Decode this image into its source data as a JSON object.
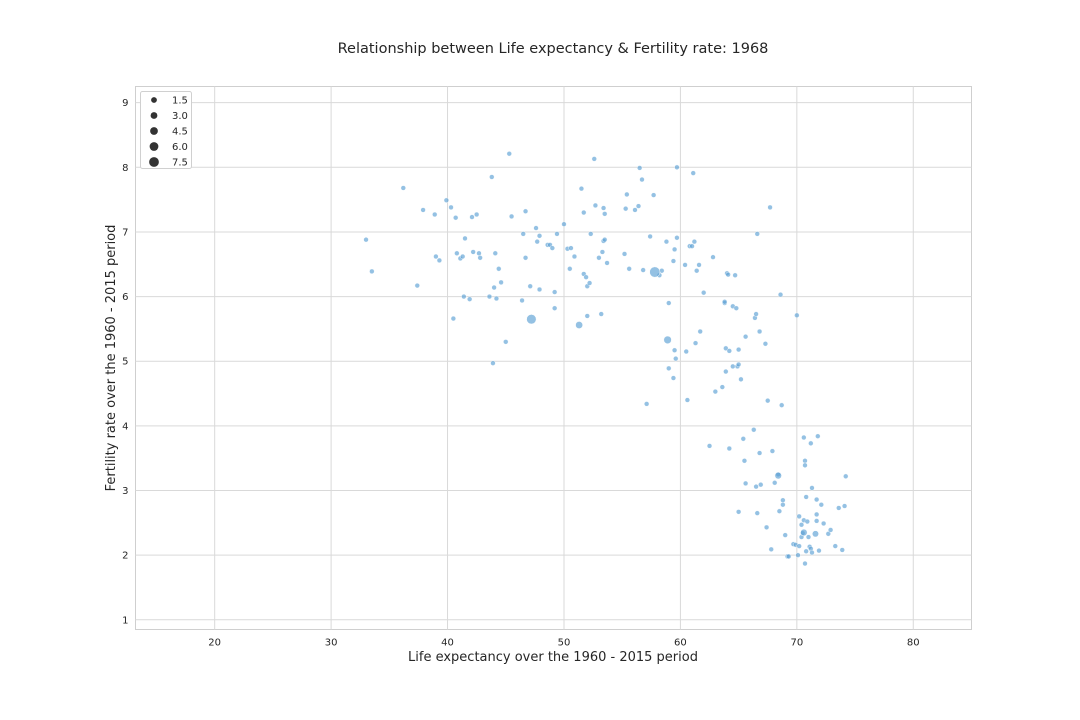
{
  "chart_data": {
    "type": "scatter",
    "title": "Relationship between Life expectancy & Fertility rate: 1968",
    "xlabel": "Life expectancy over the 1960 - 2015 period",
    "ylabel": "Fertility rate over the  1960 - 2015 period",
    "xlim": [
      13.2,
      85
    ],
    "ylim": [
      0.85,
      9.25
    ],
    "xticks": [
      20,
      30,
      40,
      50,
      60,
      70,
      80
    ],
    "yticks": [
      1,
      2,
      3,
      4,
      5,
      6,
      7,
      8,
      9
    ],
    "grid": true,
    "legend_placement": "top-left",
    "legend": [
      {
        "label": "1.5",
        "size": 1.5
      },
      {
        "label": "3.0",
        "size": 3.0
      },
      {
        "label": "4.5",
        "size": 4.5
      },
      {
        "label": "6.0",
        "size": 6.0
      },
      {
        "label": "7.5",
        "size": 7.5
      }
    ],
    "point_color": "#5a9fd4",
    "big_points": [
      [
        57.8,
        6.38,
        3.5
      ],
      [
        47.2,
        5.65,
        3.0
      ],
      [
        58.9,
        5.33,
        1.8
      ],
      [
        51.3,
        5.56,
        1.5
      ],
      [
        68.4,
        3.23,
        1.2
      ],
      [
        70.6,
        2.35,
        1.2
      ],
      [
        71.6,
        2.33,
        1.0
      ]
    ],
    "points": [
      [
        33.0,
        6.88
      ],
      [
        33.5,
        6.39
      ],
      [
        36.2,
        7.68
      ],
      [
        37.4,
        6.17
      ],
      [
        37.9,
        7.34
      ],
      [
        38.9,
        7.27
      ],
      [
        39.0,
        6.62
      ],
      [
        39.3,
        6.56
      ],
      [
        39.9,
        7.49
      ],
      [
        40.3,
        7.38
      ],
      [
        40.7,
        7.22
      ],
      [
        40.8,
        6.67
      ],
      [
        41.1,
        6.59
      ],
      [
        41.3,
        6.62
      ],
      [
        41.4,
        6.0
      ],
      [
        41.5,
        6.9
      ],
      [
        41.9,
        5.96
      ],
      [
        42.1,
        7.23
      ],
      [
        42.2,
        6.69
      ],
      [
        42.5,
        7.27
      ],
      [
        42.7,
        6.67
      ],
      [
        42.8,
        6.6
      ],
      [
        40.5,
        5.66
      ],
      [
        43.6,
        6.0
      ],
      [
        43.8,
        7.85
      ],
      [
        43.9,
        4.97
      ],
      [
        44.0,
        6.14
      ],
      [
        44.1,
        6.67
      ],
      [
        44.2,
        5.97
      ],
      [
        44.4,
        6.43
      ],
      [
        44.6,
        6.22
      ],
      [
        45.0,
        5.3
      ],
      [
        45.3,
        8.21
      ],
      [
        45.5,
        7.24
      ],
      [
        46.4,
        5.94
      ],
      [
        46.5,
        6.97
      ],
      [
        46.7,
        7.32
      ],
      [
        46.7,
        6.6
      ],
      [
        47.1,
        6.16
      ],
      [
        47.6,
        7.06
      ],
      [
        47.7,
        6.85
      ],
      [
        47.9,
        6.11
      ],
      [
        47.9,
        6.94
      ],
      [
        48.6,
        6.8
      ],
      [
        48.8,
        6.8
      ],
      [
        49.0,
        6.75
      ],
      [
        49.2,
        6.07
      ],
      [
        49.2,
        5.82
      ],
      [
        49.4,
        6.97
      ],
      [
        50.0,
        7.12
      ],
      [
        50.3,
        6.74
      ],
      [
        50.5,
        6.43
      ],
      [
        50.6,
        6.75
      ],
      [
        50.9,
        6.62
      ],
      [
        51.5,
        7.67
      ],
      [
        51.7,
        7.3
      ],
      [
        51.7,
        6.35
      ],
      [
        51.9,
        6.3
      ],
      [
        52.0,
        6.16
      ],
      [
        52.0,
        5.7
      ],
      [
        52.2,
        6.21
      ],
      [
        52.3,
        6.97
      ],
      [
        52.6,
        8.13
      ],
      [
        52.7,
        7.41
      ],
      [
        53.0,
        6.6
      ],
      [
        53.2,
        5.73
      ],
      [
        53.3,
        6.69
      ],
      [
        53.4,
        7.37
      ],
      [
        53.4,
        6.86
      ],
      [
        53.5,
        6.88
      ],
      [
        53.5,
        7.28
      ],
      [
        53.7,
        6.52
      ],
      [
        55.2,
        6.66
      ],
      [
        55.3,
        7.36
      ],
      [
        55.4,
        7.58
      ],
      [
        55.6,
        6.43
      ],
      [
        56.1,
        7.34
      ],
      [
        56.4,
        7.4
      ],
      [
        56.5,
        7.99
      ],
      [
        56.7,
        7.81
      ],
      [
        56.8,
        6.41
      ],
      [
        57.1,
        4.34
      ],
      [
        57.4,
        6.93
      ],
      [
        57.7,
        7.57
      ],
      [
        58.2,
        6.33
      ],
      [
        58.4,
        6.4
      ],
      [
        58.8,
        6.85
      ],
      [
        59.0,
        5.9
      ],
      [
        59.0,
        4.89
      ],
      [
        59.4,
        6.55
      ],
      [
        59.4,
        4.74
      ],
      [
        59.5,
        6.73
      ],
      [
        59.5,
        5.17
      ],
      [
        59.6,
        5.04
      ],
      [
        59.7,
        8.0
      ],
      [
        59.7,
        6.91
      ],
      [
        60.4,
        6.49
      ],
      [
        60.5,
        5.15
      ],
      [
        60.6,
        4.4
      ],
      [
        60.8,
        6.78
      ],
      [
        61.0,
        6.78
      ],
      [
        61.1,
        7.91
      ],
      [
        61.2,
        6.85
      ],
      [
        61.3,
        5.28
      ],
      [
        61.4,
        6.4
      ],
      [
        61.6,
        6.49
      ],
      [
        61.7,
        5.46
      ],
      [
        62.0,
        6.06
      ],
      [
        62.5,
        3.69
      ],
      [
        62.8,
        6.61
      ],
      [
        63.0,
        4.53
      ],
      [
        63.6,
        4.6
      ],
      [
        63.8,
        5.9
      ],
      [
        63.8,
        5.92
      ],
      [
        63.9,
        5.2
      ],
      [
        63.9,
        4.84
      ],
      [
        64.0,
        6.36
      ],
      [
        64.1,
        6.34
      ],
      [
        64.2,
        3.65
      ],
      [
        64.2,
        5.16
      ],
      [
        64.5,
        5.85
      ],
      [
        64.5,
        4.92
      ],
      [
        64.7,
        6.33
      ],
      [
        64.8,
        5.82
      ],
      [
        64.9,
        4.92
      ],
      [
        65.0,
        5.18
      ],
      [
        65.0,
        4.95
      ],
      [
        65.0,
        2.67
      ],
      [
        65.2,
        4.72
      ],
      [
        65.4,
        3.8
      ],
      [
        65.5,
        3.46
      ],
      [
        65.6,
        5.38
      ],
      [
        65.6,
        3.11
      ],
      [
        66.3,
        3.94
      ],
      [
        66.4,
        5.67
      ],
      [
        66.5,
        5.73
      ],
      [
        66.5,
        3.06
      ],
      [
        66.6,
        2.65
      ],
      [
        66.6,
        6.97
      ],
      [
        66.8,
        5.46
      ],
      [
        66.8,
        3.58
      ],
      [
        66.9,
        3.09
      ],
      [
        67.3,
        5.27
      ],
      [
        67.4,
        2.43
      ],
      [
        67.5,
        4.39
      ],
      [
        67.7,
        7.38
      ],
      [
        67.8,
        2.09
      ],
      [
        67.9,
        3.61
      ],
      [
        68.1,
        3.12
      ],
      [
        68.4,
        3.25
      ],
      [
        68.5,
        2.68
      ],
      [
        68.6,
        6.03
      ],
      [
        68.7,
        4.32
      ],
      [
        68.8,
        2.85
      ],
      [
        68.8,
        2.78
      ],
      [
        69.0,
        2.31
      ],
      [
        69.2,
        1.98
      ],
      [
        69.3,
        1.98
      ],
      [
        69.7,
        2.17
      ],
      [
        69.9,
        2.16
      ],
      [
        70.0,
        5.71
      ],
      [
        70.1,
        2.0
      ],
      [
        70.2,
        2.14
      ],
      [
        70.2,
        2.6
      ],
      [
        70.4,
        2.47
      ],
      [
        70.4,
        2.28
      ],
      [
        70.5,
        2.34
      ],
      [
        70.6,
        3.82
      ],
      [
        70.6,
        2.54
      ],
      [
        70.7,
        1.87
      ],
      [
        70.7,
        3.46
      ],
      [
        70.7,
        3.39
      ],
      [
        70.8,
        2.06
      ],
      [
        70.8,
        2.9
      ],
      [
        70.9,
        2.52
      ],
      [
        71.0,
        2.28
      ],
      [
        71.1,
        2.13
      ],
      [
        71.2,
        2.1
      ],
      [
        71.2,
        3.73
      ],
      [
        71.3,
        3.04
      ],
      [
        71.3,
        2.04
      ],
      [
        71.7,
        2.86
      ],
      [
        71.7,
        2.63
      ],
      [
        71.7,
        2.53
      ],
      [
        71.8,
        3.84
      ],
      [
        71.9,
        2.07
      ],
      [
        72.1,
        2.78
      ],
      [
        72.3,
        2.49
      ],
      [
        72.7,
        2.33
      ],
      [
        72.9,
        2.39
      ],
      [
        73.3,
        2.14
      ],
      [
        73.6,
        2.73
      ],
      [
        73.9,
        2.08
      ],
      [
        74.1,
        2.76
      ],
      [
        74.2,
        3.22
      ]
    ]
  }
}
